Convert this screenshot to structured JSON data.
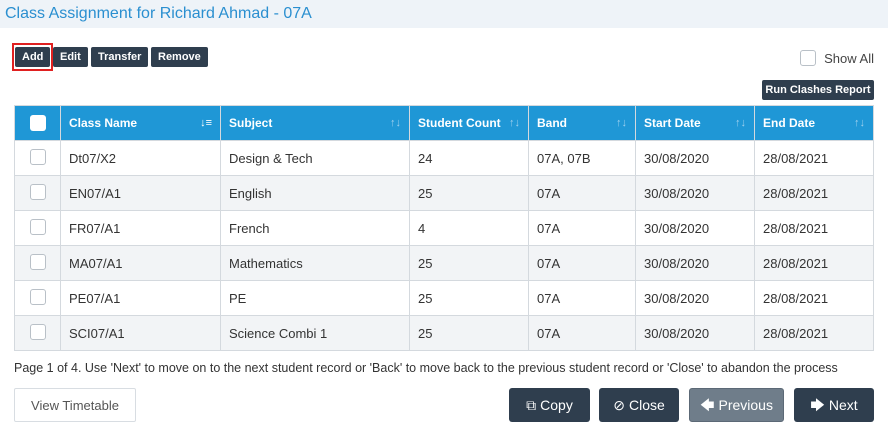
{
  "page": {
    "title": "Class Assignment for Richard Ahmad - 07A"
  },
  "toolbar": {
    "add_label": "Add",
    "edit_label": "Edit",
    "transfer_label": "Transfer",
    "remove_label": "Remove",
    "show_all_label": "Show All",
    "run_clashes_label": "Run Clashes Report"
  },
  "table": {
    "columns": [
      "Class Name",
      "Subject",
      "Student Count",
      "Band",
      "Start Date",
      "End Date"
    ],
    "rows": [
      [
        "Dt07/X2",
        "Design & Tech",
        "24",
        "07A, 07B",
        "30/08/2020",
        "28/08/2021"
      ],
      [
        "EN07/A1",
        "English",
        "25",
        "07A",
        "30/08/2020",
        "28/08/2021"
      ],
      [
        "FR07/A1",
        "French",
        "4",
        "07A",
        "30/08/2020",
        "28/08/2021"
      ],
      [
        "MA07/A1",
        "Mathematics",
        "25",
        "07A",
        "30/08/2020",
        "28/08/2021"
      ],
      [
        "PE07/A1",
        "PE",
        "25",
        "07A",
        "30/08/2020",
        "28/08/2021"
      ],
      [
        "SCI07/A1",
        "Science Combi 1",
        "25",
        "07A",
        "30/08/2020",
        "28/08/2021"
      ]
    ]
  },
  "footer": {
    "note": "Page 1 of 4. Use 'Next' to move on to the next student record or 'Back' to move back to the previous student record or 'Close' to abandon the process",
    "view_timetable_label": "View Timetable",
    "copy_label": "Copy",
    "close_label": "Close",
    "previous_label": "Previous",
    "next_label": "Next"
  },
  "icons": {
    "sort_active": "sort-amount-icon",
    "sort": "sort-icon",
    "copy": "copy-icon",
    "close": "ban-icon",
    "previous": "arrow-left-icon",
    "next": "arrow-right-icon"
  },
  "colors": {
    "header_blue": "#1f97d6",
    "title_blue": "#2a8fd0",
    "dark_button": "#2f3e4e",
    "highlight_red": "#e02020"
  }
}
